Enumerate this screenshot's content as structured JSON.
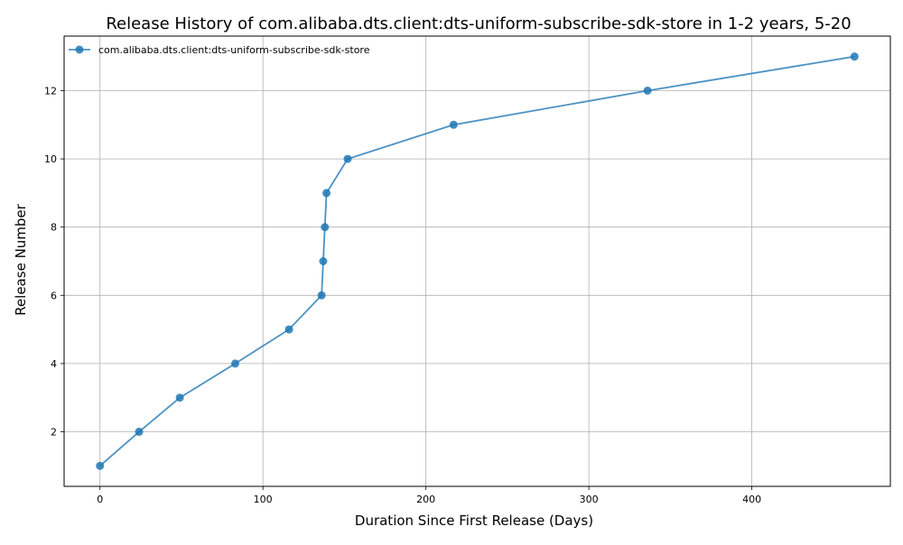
{
  "chart_data": {
    "type": "line",
    "title": "Release History of com.alibaba.dts.client:dts-uniform-subscribe-sdk-store in 1-2 years, 5-20",
    "xlabel": "Duration Since First Release (Days)",
    "ylabel": "Release Number",
    "xlim": [
      -22,
      485
    ],
    "ylim": [
      0.4,
      13.6
    ],
    "xticks": [
      0,
      100,
      200,
      300,
      400
    ],
    "yticks": [
      2,
      4,
      6,
      8,
      10,
      12
    ],
    "grid": true,
    "legend_position": "top-left",
    "series": [
      {
        "name": "com.alibaba.dts.client:dts-uniform-subscribe-sdk-store",
        "color": "#1f77b4",
        "marker": "circle",
        "x": [
          0,
          24,
          49,
          83,
          116,
          136,
          137,
          138,
          139,
          152,
          217,
          336,
          463
        ],
        "y": [
          1,
          2,
          3,
          4,
          5,
          6,
          7,
          8,
          9,
          10,
          11,
          12,
          13
        ]
      }
    ]
  }
}
